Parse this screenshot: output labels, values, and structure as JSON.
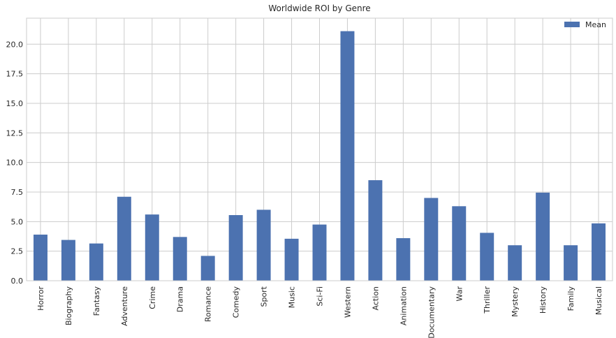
{
  "chart_data": {
    "type": "bar",
    "title": "Worldwide ROI by Genre",
    "xlabel": "",
    "ylabel": "",
    "categories": [
      "Horror",
      "Biography",
      "Fantasy",
      "Adventure",
      "Crime",
      "Drama",
      "Romance",
      "Comedy",
      "Sport",
      "Music",
      "Sci-Fi",
      "Western",
      "Action",
      "Animation",
      "Documentary",
      "War",
      "Thriller",
      "Mystery",
      "History",
      "Family",
      "Musical"
    ],
    "series": [
      {
        "name": "Mean",
        "values": [
          3.9,
          3.45,
          3.15,
          7.1,
          5.6,
          3.7,
          2.1,
          5.55,
          6.0,
          3.55,
          4.75,
          21.1,
          8.5,
          3.6,
          7.0,
          6.3,
          4.05,
          3.0,
          7.45,
          3.0,
          4.85
        ]
      }
    ],
    "ylim": [
      0,
      22.2
    ],
    "yticks": [
      0.0,
      2.5,
      5.0,
      7.5,
      10.0,
      12.5,
      15.0,
      17.5,
      20.0
    ],
    "ytick_labels": [
      "0.0",
      "2.5",
      "5.0",
      "7.5",
      "10.0",
      "12.5",
      "15.0",
      "17.5",
      "20.0"
    ],
    "grid": true,
    "legend_position": "top-right",
    "colors": {
      "bar": "#4c72b0",
      "grid": "#cccccc",
      "frame": "#cccccc"
    }
  }
}
